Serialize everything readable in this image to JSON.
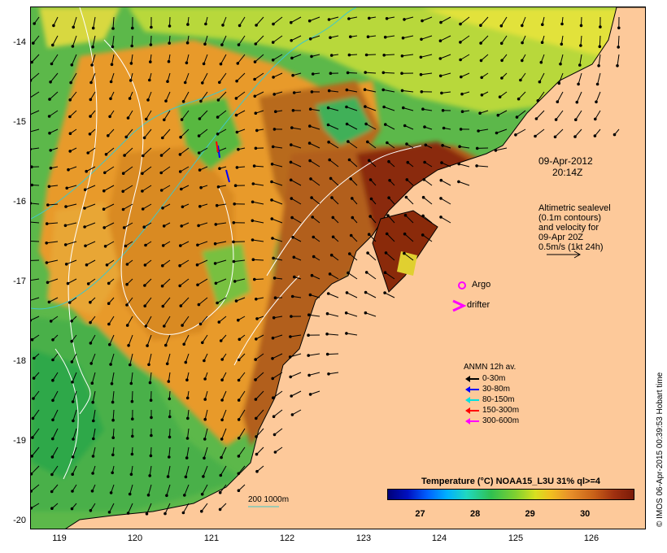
{
  "map": {
    "lon_ticks": [
      "119",
      "120",
      "121",
      "122",
      "123",
      "124",
      "125",
      "126"
    ],
    "lat_ticks": [
      "-14",
      "-15",
      "-16",
      "-17",
      "-18",
      "-19",
      "-20"
    ],
    "timestamp_date": "09-Apr-2012",
    "timestamp_time": "20:14Z",
    "altimetry_lines": [
      "Altimetric sealevel",
      "(0.1m contours)",
      "and velocity for",
      "09-Apr 20Z",
      "0.5m/s (1kt 24h)"
    ],
    "argo_label": "Argo",
    "drifter_label": "drifter",
    "bathy_label": "200  1000m",
    "anmn_title": "ANMN 12h av.",
    "anmn_legend": [
      {
        "label": "0-30m",
        "color": "#000000"
      },
      {
        "label": "30-80m",
        "color": "#0000ff"
      },
      {
        "label": "80-150m",
        "color": "#00e0e0"
      },
      {
        "label": "150-300m",
        "color": "#ff0000"
      },
      {
        "label": "300-600m",
        "color": "#ff00ff"
      }
    ],
    "colorbar_title": "Temperature (°C) NOAA15_L3U 31% ql>=4",
    "colorbar_ticks": [
      "27",
      "28",
      "29",
      "30"
    ],
    "colorbar_range": [
      26.4,
      30.9
    ],
    "credit": "© IMOS 06-Apr-2015 00:39:53 Hobart time",
    "colors": {
      "land": "#fdc99a",
      "argo": "#ff00ff",
      "drifter": "#ff00ff",
      "bathy_contour": "#40c8c8",
      "sealevel_contour": "#ffffff"
    }
  }
}
